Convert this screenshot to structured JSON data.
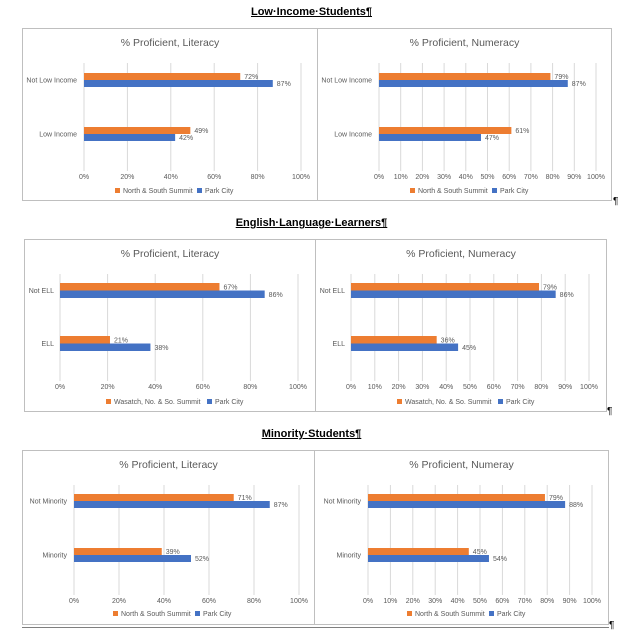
{
  "sections": [
    {
      "heading": "Low·Income·Students¶"
    },
    {
      "heading": "English·Language·Learners¶"
    },
    {
      "heading": "Minority·Students¶"
    }
  ],
  "pilcrow": "¶",
  "colors": {
    "orange": "#ED7D31",
    "blue": "#4472C4",
    "grid": "#d9d9d9",
    "text": "#595959"
  },
  "chart_data": [
    {
      "type": "bar",
      "orientation": "horizontal",
      "title": "% Proficient, Literacy",
      "categories": [
        "Not Low Income",
        "Low Income"
      ],
      "series": [
        {
          "name": "North & South Summit",
          "values": [
            72,
            49
          ]
        },
        {
          "name": "Park City",
          "values": [
            87,
            42
          ]
        }
      ],
      "xlim": [
        0,
        100
      ],
      "ticks": [
        "0%",
        "20%",
        "40%",
        "60%",
        "80%",
        "100%"
      ]
    },
    {
      "type": "bar",
      "orientation": "horizontal",
      "title": "% Proficient, Numeracy",
      "categories": [
        "Not Low Income",
        "Low Income"
      ],
      "series": [
        {
          "name": "North & South Summit",
          "values": [
            79,
            61
          ]
        },
        {
          "name": "Park City",
          "values": [
            87,
            47
          ]
        }
      ],
      "xlim": [
        0,
        100
      ],
      "ticks": [
        "0%",
        "10%",
        "20%",
        "30%",
        "40%",
        "50%",
        "60%",
        "70%",
        "80%",
        "90%",
        "100%"
      ]
    },
    {
      "type": "bar",
      "orientation": "horizontal",
      "title": "% Proficient, Literacy",
      "categories": [
        "Not ELL",
        "ELL"
      ],
      "series": [
        {
          "name": "Wasatch, No. & So. Summit",
          "values": [
            67,
            21
          ]
        },
        {
          "name": "Park City",
          "values": [
            86,
            38
          ]
        }
      ],
      "xlim": [
        0,
        100
      ],
      "ticks": [
        "0%",
        "20%",
        "40%",
        "60%",
        "80%",
        "100%"
      ]
    },
    {
      "type": "bar",
      "orientation": "horizontal",
      "title": "% Proficient, Numeracy",
      "categories": [
        "Not ELL",
        "ELL"
      ],
      "series": [
        {
          "name": "Wasatch, No. & So. Summit",
          "values": [
            79,
            36
          ]
        },
        {
          "name": "Park City",
          "values": [
            86,
            45
          ]
        }
      ],
      "xlim": [
        0,
        100
      ],
      "ticks": [
        "0%",
        "10%",
        "20%",
        "30%",
        "40%",
        "50%",
        "60%",
        "70%",
        "80%",
        "90%",
        "100%"
      ]
    },
    {
      "type": "bar",
      "orientation": "horizontal",
      "title": "% Proficient, Literacy",
      "categories": [
        "Not Minority",
        "Minority"
      ],
      "series": [
        {
          "name": "North & South Summit",
          "values": [
            71,
            39
          ]
        },
        {
          "name": "Park City",
          "values": [
            87,
            52
          ]
        }
      ],
      "xlim": [
        0,
        100
      ],
      "ticks": [
        "0%",
        "20%",
        "40%",
        "60%",
        "80%",
        "100%"
      ]
    },
    {
      "type": "bar",
      "orientation": "horizontal",
      "title": "% Proficient, Numeray",
      "categories": [
        "Not Minority",
        "Minority"
      ],
      "series": [
        {
          "name": "North & South Summit",
          "values": [
            79,
            45
          ]
        },
        {
          "name": "Park City",
          "values": [
            88,
            54
          ]
        }
      ],
      "xlim": [
        0,
        100
      ],
      "ticks": [
        "0%",
        "10%",
        "20%",
        "30%",
        "40%",
        "50%",
        "60%",
        "70%",
        "80%",
        "90%",
        "100%"
      ]
    }
  ]
}
